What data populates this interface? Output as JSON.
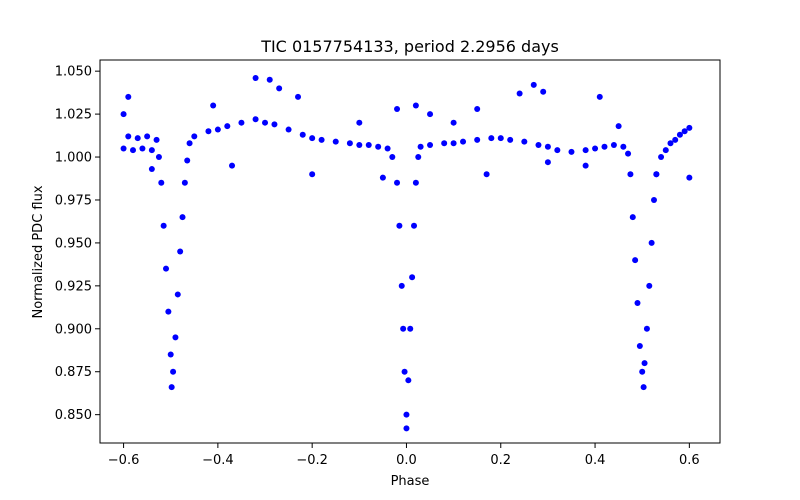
{
  "chart_data": {
    "type": "scatter",
    "title": "TIC 0157754133, period 2.2956 days",
    "xlabel": "Phase",
    "ylabel": "Normalized PDC flux",
    "xlim": [
      -0.65,
      0.665
    ],
    "ylim": [
      0.8335,
      1.0565
    ],
    "xticks": [
      -0.6,
      -0.4,
      -0.2,
      0.0,
      0.2,
      0.4,
      0.6
    ],
    "xtick_labels": [
      "−0.6",
      "−0.4",
      "−0.2",
      "0.0",
      "0.2",
      "0.4",
      "0.6"
    ],
    "yticks": [
      0.85,
      0.875,
      0.9,
      0.925,
      0.95,
      0.975,
      1.0,
      1.025,
      1.05
    ],
    "ytick_labels": [
      "0.850",
      "0.875",
      "0.900",
      "0.925",
      "0.950",
      "0.975",
      "1.000",
      "1.025",
      "1.050"
    ],
    "grid": false,
    "marker_color": "#0000ff",
    "series": [
      {
        "points": [
          [
            -0.6,
            1.005
          ],
          [
            -0.59,
            1.012
          ],
          [
            -0.58,
            1.004
          ],
          [
            -0.57,
            1.011
          ],
          [
            -0.56,
            1.005
          ],
          [
            -0.55,
            1.012
          ],
          [
            -0.54,
            1.004
          ],
          [
            -0.53,
            1.01
          ],
          [
            -0.525,
            1.0
          ],
          [
            -0.52,
            0.985
          ],
          [
            -0.515,
            0.96
          ],
          [
            -0.51,
            0.935
          ],
          [
            -0.505,
            0.91
          ],
          [
            -0.5,
            0.885
          ],
          [
            -0.495,
            0.875
          ],
          [
            -0.49,
            0.895
          ],
          [
            -0.485,
            0.92
          ],
          [
            -0.48,
            0.945
          ],
          [
            -0.475,
            0.965
          ],
          [
            -0.47,
            0.985
          ],
          [
            -0.465,
            0.998
          ],
          [
            -0.46,
            1.008
          ],
          [
            -0.45,
            1.012
          ],
          [
            -0.42,
            1.015
          ],
          [
            -0.4,
            1.016
          ],
          [
            -0.38,
            1.018
          ],
          [
            -0.35,
            1.02
          ],
          [
            -0.32,
            1.022
          ],
          [
            -0.3,
            1.02
          ],
          [
            -0.28,
            1.019
          ],
          [
            -0.25,
            1.016
          ],
          [
            -0.22,
            1.013
          ],
          [
            -0.2,
            1.011
          ],
          [
            -0.18,
            1.01
          ],
          [
            -0.15,
            1.009
          ],
          [
            -0.12,
            1.008
          ],
          [
            -0.1,
            1.007
          ],
          [
            -0.08,
            1.007
          ],
          [
            -0.06,
            1.006
          ],
          [
            -0.04,
            1.005
          ],
          [
            -0.03,
            1.0
          ],
          [
            -0.02,
            0.985
          ],
          [
            -0.015,
            0.96
          ],
          [
            -0.01,
            0.925
          ],
          [
            -0.007,
            0.9
          ],
          [
            -0.004,
            0.875
          ],
          [
            0.0,
            0.85
          ],
          [
            0.004,
            0.87
          ],
          [
            0.008,
            0.9
          ],
          [
            0.012,
            0.93
          ],
          [
            0.016,
            0.96
          ],
          [
            0.02,
            0.985
          ],
          [
            0.025,
            1.0
          ],
          [
            0.03,
            1.006
          ],
          [
            0.05,
            1.007
          ],
          [
            0.08,
            1.008
          ],
          [
            0.1,
            1.008
          ],
          [
            0.12,
            1.009
          ],
          [
            0.15,
            1.01
          ],
          [
            0.18,
            1.011
          ],
          [
            0.2,
            1.011
          ],
          [
            0.22,
            1.01
          ],
          [
            0.25,
            1.009
          ],
          [
            0.28,
            1.007
          ],
          [
            0.3,
            1.006
          ],
          [
            0.32,
            1.004
          ],
          [
            0.35,
            1.003
          ],
          [
            0.38,
            1.004
          ],
          [
            0.4,
            1.005
          ],
          [
            0.42,
            1.006
          ],
          [
            0.44,
            1.007
          ],
          [
            0.46,
            1.006
          ],
          [
            0.47,
            1.002
          ],
          [
            0.475,
            0.99
          ],
          [
            0.48,
            0.965
          ],
          [
            0.485,
            0.94
          ],
          [
            0.49,
            0.915
          ],
          [
            0.495,
            0.89
          ],
          [
            0.5,
            0.875
          ],
          [
            0.505,
            0.88
          ],
          [
            0.51,
            0.9
          ],
          [
            0.515,
            0.925
          ],
          [
            0.52,
            0.95
          ],
          [
            0.525,
            0.975
          ],
          [
            0.53,
            0.99
          ],
          [
            0.54,
            1.0
          ],
          [
            0.55,
            1.004
          ],
          [
            0.56,
            1.008
          ],
          [
            0.57,
            1.01
          ],
          [
            0.58,
            1.013
          ],
          [
            0.59,
            1.015
          ],
          [
            0.6,
            1.017
          ],
          [
            -0.6,
            1.025
          ],
          [
            -0.59,
            1.035
          ],
          [
            -0.41,
            1.03
          ],
          [
            -0.32,
            1.046
          ],
          [
            -0.29,
            1.045
          ],
          [
            -0.27,
            1.04
          ],
          [
            -0.23,
            1.035
          ],
          [
            0.27,
            1.042
          ],
          [
            0.29,
            1.038
          ],
          [
            0.24,
            1.037
          ],
          [
            0.41,
            1.035
          ],
          [
            0.6,
            0.988
          ],
          [
            0.53,
            0.99
          ],
          [
            0.38,
            0.995
          ],
          [
            0.3,
            0.997
          ],
          [
            0.17,
            0.99
          ],
          [
            -0.2,
            0.99
          ],
          [
            -0.05,
            0.988
          ],
          [
            -0.37,
            0.995
          ],
          [
            -0.54,
            0.993
          ],
          [
            0.02,
            1.03
          ],
          [
            -0.02,
            1.028
          ],
          [
            0.0,
            0.842
          ],
          [
            -0.498,
            0.866
          ],
          [
            0.503,
            0.866
          ],
          [
            0.05,
            1.025
          ],
          [
            0.1,
            1.02
          ],
          [
            0.15,
            1.028
          ],
          [
            0.45,
            1.018
          ],
          [
            -0.1,
            1.02
          ]
        ]
      }
    ]
  }
}
